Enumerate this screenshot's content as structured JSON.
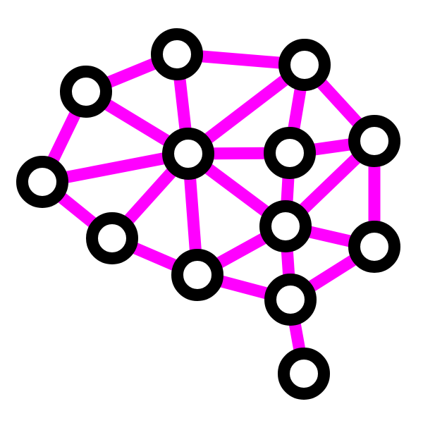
{
  "diagram": {
    "icon_name": "brain-network-icon",
    "colors": {
      "background": "#ffffff",
      "edge": "#ff00ff",
      "node_stroke": "#000000",
      "node_fill": "#ffffff"
    },
    "nodes": [
      {
        "id": "n1"
      },
      {
        "id": "n2"
      },
      {
        "id": "n3"
      },
      {
        "id": "n4"
      },
      {
        "id": "n5"
      },
      {
        "id": "n6"
      },
      {
        "id": "n7"
      },
      {
        "id": "n8"
      },
      {
        "id": "n9"
      },
      {
        "id": "n10"
      },
      {
        "id": "n11"
      },
      {
        "id": "n12"
      },
      {
        "id": "n13"
      },
      {
        "id": "n14"
      }
    ],
    "edges": [
      [
        "n1",
        "n2"
      ],
      [
        "n1",
        "n3"
      ],
      [
        "n1",
        "n4"
      ],
      [
        "n2",
        "n5"
      ],
      [
        "n2",
        "n6"
      ],
      [
        "n3",
        "n5"
      ],
      [
        "n3",
        "n7"
      ],
      [
        "n4",
        "n5"
      ],
      [
        "n4",
        "n8"
      ],
      [
        "n5",
        "n6"
      ],
      [
        "n5",
        "n7"
      ],
      [
        "n5",
        "n8"
      ],
      [
        "n5",
        "n9"
      ],
      [
        "n5",
        "n10"
      ],
      [
        "n6",
        "n7"
      ],
      [
        "n6",
        "n11"
      ],
      [
        "n6",
        "n12"
      ],
      [
        "n7",
        "n11"
      ],
      [
        "n8",
        "n9"
      ],
      [
        "n9",
        "n10"
      ],
      [
        "n9",
        "n11"
      ],
      [
        "n9",
        "n12"
      ],
      [
        "n9",
        "n13"
      ],
      [
        "n10",
        "n13"
      ],
      [
        "n11",
        "n12"
      ],
      [
        "n12",
        "n13"
      ],
      [
        "n13",
        "n14"
      ]
    ]
  }
}
